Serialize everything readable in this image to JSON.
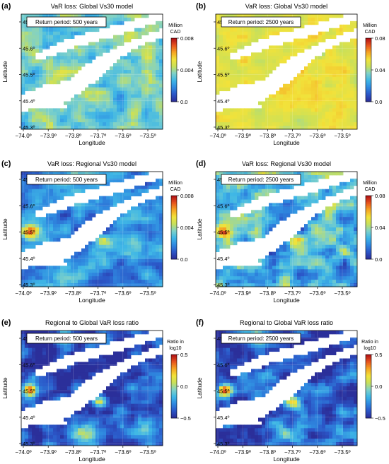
{
  "chart_data": [
    {
      "type": "heatmap",
      "panel": "(a)",
      "title": "VaR loss: Global Vs30 model",
      "return_period": "Return period: 500 years",
      "xlabel": "Longitude",
      "ylabel": "Latitude",
      "xlim": [
        -74.03,
        -73.44
      ],
      "ylim": [
        45.29,
        45.74
      ],
      "x_ticks": [
        "−74.0º",
        "−73.9º",
        "−73.8º",
        "−73.7º",
        "−73.6º",
        "−73.5º"
      ],
      "y_ticks": [
        "45.3º",
        "45.4º",
        "45.5º",
        "45.6º",
        "45.7º"
      ],
      "colorbar": {
        "label_lines": [
          "Million",
          "CAD"
        ],
        "ticks": [
          "0.008",
          "0.004",
          "0.0"
        ],
        "range": [
          0,
          0.008
        ]
      },
      "field": "global",
      "level": 0.42,
      "noise": 0.15
    },
    {
      "type": "heatmap",
      "panel": "(b)",
      "title": "VaR loss: Global Vs30 model",
      "return_period": "Return period: 2500 years",
      "xlabel": "Longitude",
      "ylabel": "Latitude",
      "xlim": [
        -74.03,
        -73.44
      ],
      "ylim": [
        45.29,
        45.74
      ],
      "x_ticks": [
        "−74.0º",
        "−73.9º",
        "−73.8º",
        "−73.7º",
        "−73.6º",
        "−73.5º"
      ],
      "y_ticks": [
        "45.3º",
        "45.4º",
        "45.5º",
        "45.6º",
        "45.7º"
      ],
      "colorbar": {
        "label_lines": [
          "Million",
          "CAD"
        ],
        "ticks": [
          "0.08",
          "0.04",
          "0.0"
        ],
        "range": [
          0,
          0.08
        ]
      },
      "field": "global",
      "level": 0.62,
      "noise": 0.08
    },
    {
      "type": "heatmap",
      "panel": "(c)",
      "title": "VaR loss: Regional Vs30 model",
      "return_period": "Return period: 500 years",
      "xlabel": "Longitude",
      "ylabel": "Latitude",
      "xlim": [
        -74.03,
        -73.44
      ],
      "ylim": [
        45.29,
        45.74
      ],
      "x_ticks": [
        "−74.0º",
        "−73.9º",
        "−73.8º",
        "−73.7º",
        "−73.6º",
        "−73.5º"
      ],
      "y_ticks": [
        "45.3º",
        "45.4º",
        "45.5º",
        "45.6º",
        "45.7º"
      ],
      "colorbar": {
        "label_lines": [
          "Million",
          "CAD"
        ],
        "ticks": [
          "0.008",
          "0.004",
          "0.0"
        ],
        "range": [
          0,
          0.008
        ]
      },
      "field": "regional",
      "level": 0.2,
      "noise": 0.15
    },
    {
      "type": "heatmap",
      "panel": "(d)",
      "title": "VaR loss: Regional Vs30 model",
      "return_period": "Return period: 2500 years",
      "xlabel": "Longitude",
      "ylabel": "Latitude",
      "xlim": [
        -74.03,
        -73.44
      ],
      "ylim": [
        45.29,
        45.74
      ],
      "x_ticks": [
        "−74.0º",
        "−73.9º",
        "−73.8º",
        "−73.7º",
        "−73.6º",
        "−73.5º"
      ],
      "y_ticks": [
        "45.3º",
        "45.4º",
        "45.5º",
        "45.6º",
        "45.7º"
      ],
      "colorbar": {
        "label_lines": [
          "Million",
          "CAD"
        ],
        "ticks": [
          "0.08",
          "0.04",
          "0.0"
        ],
        "range": [
          0,
          0.08
        ]
      },
      "field": "regional",
      "level": 0.3,
      "noise": 0.22
    },
    {
      "type": "heatmap",
      "panel": "(e)",
      "title": "Regional to Global VaR loss ratio",
      "return_period": "Return period: 500 years",
      "xlabel": "Longitude",
      "ylabel": "Latitude",
      "xlim": [
        -74.03,
        -73.44
      ],
      "ylim": [
        45.29,
        45.74
      ],
      "x_ticks": [
        "−74.0º",
        "−73.9º",
        "−73.8º",
        "−73.7º",
        "−73.6º",
        "−73.5º"
      ],
      "y_ticks": [
        "45.3º",
        "45.4º",
        "45.5º",
        "45.6º",
        "45.7º"
      ],
      "colorbar": {
        "label_lines": [
          "Ratio in",
          "log10"
        ],
        "ticks": [
          "0.5",
          "0.0",
          "−0.5"
        ],
        "range": [
          -0.5,
          0.5
        ]
      },
      "field": "ratio",
      "level": 0.08,
      "noise": 0.18
    },
    {
      "type": "heatmap",
      "panel": "(f)",
      "title": "Regional to Global VaR loss ratio",
      "return_period": "Return period: 2500 years",
      "xlabel": "Longitude",
      "ylabel": "Latitude",
      "xlim": [
        -74.03,
        -73.44
      ],
      "ylim": [
        45.29,
        45.74
      ],
      "x_ticks": [
        "−74.0º",
        "−73.9º",
        "−73.8º",
        "−73.7º",
        "−73.6º",
        "−73.5º"
      ],
      "y_ticks": [
        "45.3º",
        "45.4º",
        "45.5º",
        "45.6º",
        "45.7º"
      ],
      "colorbar": {
        "label_lines": [
          "Ratio in",
          "log10"
        ],
        "ticks": [
          "0.5",
          "0.0",
          "−0.5"
        ],
        "range": [
          -0.5,
          0.5
        ]
      },
      "field": "ratio",
      "level": 0.1,
      "noise": 0.2
    }
  ],
  "colormap": [
    "#2b2f9a",
    "#2b57c8",
    "#2f8ae0",
    "#3fb7e6",
    "#7fd1c8",
    "#c8e05a",
    "#f2e23a",
    "#f6a623",
    "#e8561e",
    "#b11216"
  ]
}
